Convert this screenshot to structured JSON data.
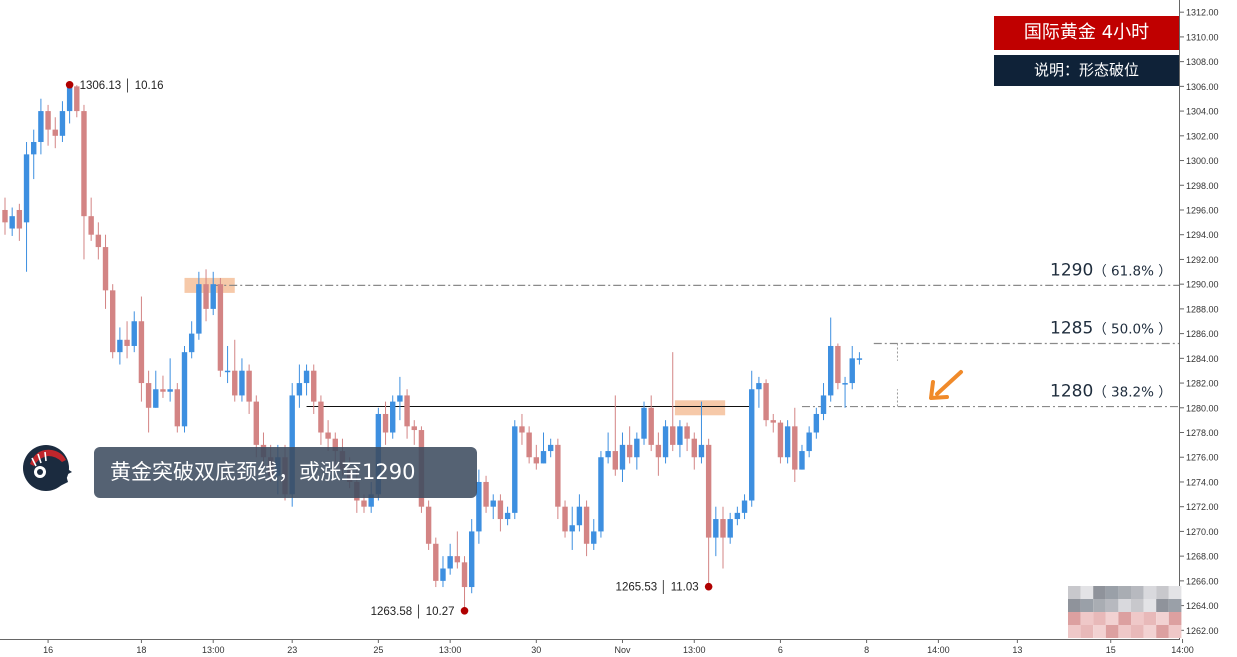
{
  "legend": {
    "title": "国际黄金  4小时",
    "note": "说明：形态破位"
  },
  "headline": "黄金突破双底颈线，或涨至1290",
  "colors": {
    "up": "#3d8fe0",
    "down": "#d38484",
    "marker": "#b00000",
    "highlight": "#f5c09a",
    "arrow": "#f08a2a",
    "title_bg": "#c00000",
    "note_bg": "#0f2238"
  },
  "chart_data": {
    "type": "candlestick",
    "title": "",
    "xlabel": "",
    "ylabel": "",
    "ylim": [
      1261.5,
      1312.5
    ],
    "grid": false,
    "y_ticks": [
      1262,
      1264,
      1266,
      1268,
      1270,
      1272,
      1274,
      1276,
      1278,
      1280,
      1282,
      1284,
      1286,
      1288,
      1290,
      1292,
      1294,
      1296,
      1298,
      1300,
      1302,
      1304,
      1306,
      1308,
      1310,
      1312
    ],
    "x_labels": [
      {
        "label": "16",
        "bar": 6
      },
      {
        "label": "18",
        "bar": 19
      },
      {
        "label": "13:00",
        "bar": 29
      },
      {
        "label": "23",
        "bar": 40
      },
      {
        "label": "25",
        "bar": 52
      },
      {
        "label": "13:00",
        "bar": 62
      },
      {
        "label": "30",
        "bar": 74
      },
      {
        "label": "Nov",
        "bar": 86
      },
      {
        "label": "13:00",
        "bar": 96
      },
      {
        "label": "6",
        "bar": 108
      },
      {
        "label": "8",
        "bar": 120
      },
      {
        "label": "14:00",
        "bar": 130
      },
      {
        "label": "13",
        "bar": 141
      },
      {
        "label": "15",
        "bar": 154
      },
      {
        "label": "14:00",
        "bar": 164
      }
    ],
    "candles": [
      [
        1296.0,
        1295.0,
        1297.0,
        1294.0
      ],
      [
        1294.5,
        1295.5,
        1296.2,
        1293.9
      ],
      [
        1296.0,
        1294.5,
        1296.5,
        1293.5
      ],
      [
        1295.0,
        1300.5,
        1301.5,
        1291.0
      ],
      [
        1300.5,
        1301.5,
        1302.5,
        1298.5
      ],
      [
        1301.5,
        1304.0,
        1305.0,
        1300.5
      ],
      [
        1304.0,
        1302.5,
        1304.5,
        1301.2
      ],
      [
        1302.5,
        1302.0,
        1303.5,
        1301.0
      ],
      [
        1302.0,
        1304.0,
        1304.8,
        1301.5
      ],
      [
        1304.0,
        1306.0,
        1306.13,
        1303.0
      ],
      [
        1306.0,
        1304.0,
        1306.1,
        1303.5
      ],
      [
        1304.0,
        1295.5,
        1304.5,
        1292.0
      ],
      [
        1295.5,
        1294.0,
        1297.0,
        1293.5
      ],
      [
        1294.0,
        1293.0,
        1295.0,
        1292.0
      ],
      [
        1293.0,
        1289.5,
        1294.0,
        1288.0
      ],
      [
        1289.5,
        1284.5,
        1290.0,
        1284.0
      ],
      [
        1284.5,
        1285.5,
        1286.5,
        1283.5
      ],
      [
        1285.5,
        1285.0,
        1287.0,
        1284.0
      ],
      [
        1285.0,
        1287.0,
        1287.8,
        1284.5
      ],
      [
        1287.0,
        1282.0,
        1289.0,
        1280.5
      ],
      [
        1282.0,
        1280.0,
        1283.0,
        1278.0
      ],
      [
        1280.0,
        1281.5,
        1283.0,
        1280.0
      ],
      [
        1281.5,
        1281.3,
        1282.6,
        1280.8
      ],
      [
        1281.3,
        1281.5,
        1284.0,
        1280.5
      ],
      [
        1281.5,
        1278.5,
        1282.0,
        1278.0
      ],
      [
        1278.5,
        1284.5,
        1285.0,
        1278.0
      ],
      [
        1284.5,
        1286.0,
        1287.0,
        1284.0
      ],
      [
        1286.0,
        1290.0,
        1291.0,
        1285.5
      ],
      [
        1290.0,
        1288.0,
        1291.2,
        1287.0
      ],
      [
        1288.0,
        1290.0,
        1291.0,
        1287.5
      ],
      [
        1290.0,
        1283.0,
        1290.5,
        1282.5
      ],
      [
        1283.0,
        1283.0,
        1285.0,
        1282.0
      ],
      [
        1283.0,
        1281.0,
        1285.5,
        1280.5
      ],
      [
        1281.0,
        1283.0,
        1284.0,
        1280.5
      ],
      [
        1283.0,
        1280.5,
        1283.5,
        1279.5
      ],
      [
        1280.5,
        1277.0,
        1281.0,
        1276.0
      ],
      [
        1277.0,
        1276.0,
        1278.0,
        1275.0
      ],
      [
        1276.0,
        1274.5,
        1277.0,
        1274.0
      ],
      [
        1274.5,
        1276.0,
        1277.0,
        1273.0
      ],
      [
        1276.0,
        1273.0,
        1277.0,
        1272.5
      ],
      [
        1273.0,
        1281.0,
        1282.0,
        1272.0
      ],
      [
        1281.0,
        1282.0,
        1283.5,
        1280.0
      ],
      [
        1282.0,
        1283.0,
        1283.5,
        1281.0
      ],
      [
        1283.0,
        1280.5,
        1283.5,
        1279.5
      ],
      [
        1280.5,
        1278.0,
        1281.0,
        1277.0
      ],
      [
        1278.0,
        1277.5,
        1279.0,
        1276.5
      ],
      [
        1277.5,
        1276.5,
        1278.0,
        1275.0
      ],
      [
        1276.5,
        1275.0,
        1277.5,
        1274.5
      ],
      [
        1275.0,
        1274.0,
        1276.0,
        1273.5
      ],
      [
        1274.0,
        1272.5,
        1275.0,
        1271.5
      ],
      [
        1272.5,
        1272.0,
        1273.0,
        1271.5
      ],
      [
        1272.0,
        1273.0,
        1274.0,
        1271.5
      ],
      [
        1273.0,
        1279.5,
        1280.0,
        1272.5
      ],
      [
        1279.5,
        1278.0,
        1280.5,
        1277.0
      ],
      [
        1278.0,
        1280.5,
        1281.0,
        1277.5
      ],
      [
        1280.5,
        1281.0,
        1282.5,
        1279.0
      ],
      [
        1281.0,
        1278.5,
        1281.5,
        1277.5
      ],
      [
        1278.5,
        1278.2,
        1279.0,
        1277.0
      ],
      [
        1278.2,
        1272.0,
        1278.5,
        1271.5
      ],
      [
        1272.0,
        1269.0,
        1272.5,
        1268.5
      ],
      [
        1269.0,
        1266.0,
        1269.5,
        1265.5
      ],
      [
        1266.0,
        1267.0,
        1268.0,
        1265.5
      ],
      [
        1267.0,
        1268.0,
        1269.0,
        1266.5
      ],
      [
        1268.0,
        1267.5,
        1270.0,
        1267.0
      ],
      [
        1267.5,
        1265.5,
        1268.0,
        1263.58
      ],
      [
        1265.5,
        1270.0,
        1271.0,
        1265.0
      ],
      [
        1270.0,
        1274.0,
        1275.0,
        1269.0
      ],
      [
        1274.0,
        1272.0,
        1274.5,
        1271.5
      ],
      [
        1272.0,
        1272.5,
        1273.0,
        1271.0
      ],
      [
        1272.5,
        1271.0,
        1273.0,
        1270.0
      ],
      [
        1271.0,
        1271.5,
        1272.0,
        1270.5
      ],
      [
        1271.5,
        1278.5,
        1279.0,
        1271.0
      ],
      [
        1278.5,
        1278.0,
        1279.5,
        1277.0
      ],
      [
        1278.0,
        1276.0,
        1278.5,
        1275.5
      ],
      [
        1276.0,
        1275.5,
        1277.0,
        1275.0
      ],
      [
        1275.5,
        1276.5,
        1278.0,
        1275.5
      ],
      [
        1276.5,
        1277.0,
        1277.5,
        1276.0
      ],
      [
        1277.0,
        1272.0,
        1277.5,
        1271.0
      ],
      [
        1272.0,
        1270.0,
        1272.5,
        1269.5
      ],
      [
        1270.0,
        1270.5,
        1272.0,
        1268.5
      ],
      [
        1270.5,
        1272.0,
        1273.0,
        1270.0
      ],
      [
        1272.0,
        1269.0,
        1272.5,
        1268.0
      ],
      [
        1269.0,
        1270.0,
        1271.0,
        1268.5
      ],
      [
        1270.0,
        1276.0,
        1276.5,
        1269.5
      ],
      [
        1276.0,
        1276.5,
        1278.0,
        1275.5
      ],
      [
        1276.5,
        1275.0,
        1281.0,
        1274.5
      ],
      [
        1275.0,
        1277.0,
        1278.0,
        1274.0
      ],
      [
        1277.0,
        1276.0,
        1278.5,
        1275.5
      ],
      [
        1276.0,
        1277.5,
        1278.0,
        1275.0
      ],
      [
        1277.5,
        1280.0,
        1280.5,
        1277.0
      ],
      [
        1280.0,
        1277.0,
        1281.0,
        1276.5
      ],
      [
        1277.0,
        1276.0,
        1278.0,
        1274.5
      ],
      [
        1276.0,
        1278.5,
        1279.0,
        1275.5
      ],
      [
        1278.5,
        1277.0,
        1284.5,
        1276.5
      ],
      [
        1277.0,
        1278.5,
        1279.0,
        1276.0
      ],
      [
        1278.5,
        1277.5,
        1278.8,
        1276.5
      ],
      [
        1277.5,
        1276.0,
        1278.0,
        1275.0
      ],
      [
        1276.0,
        1277.0,
        1280.5,
        1275.5
      ],
      [
        1277.0,
        1269.5,
        1277.5,
        1265.53
      ],
      [
        1269.5,
        1271.0,
        1272.0,
        1268.0
      ],
      [
        1271.0,
        1269.5,
        1272.0,
        1267.0
      ],
      [
        1269.5,
        1271.0,
        1271.5,
        1269.0
      ],
      [
        1271.0,
        1271.5,
        1272.0,
        1270.5
      ],
      [
        1271.5,
        1272.5,
        1273.0,
        1271.0
      ],
      [
        1272.5,
        1281.5,
        1283.0,
        1272.0
      ],
      [
        1281.5,
        1282.0,
        1282.5,
        1280.0
      ],
      [
        1282.0,
        1279.0,
        1282.3,
        1278.5
      ],
      [
        1279.0,
        1278.8,
        1279.5,
        1278.0
      ],
      [
        1278.8,
        1276.0,
        1279.0,
        1275.5
      ],
      [
        1276.0,
        1278.5,
        1279.0,
        1275.5
      ],
      [
        1278.5,
        1275.0,
        1280.0,
        1274.0
      ],
      [
        1275.0,
        1276.5,
        1277.0,
        1275.0
      ],
      [
        1276.5,
        1278.0,
        1278.5,
        1276.0
      ],
      [
        1278.0,
        1279.5,
        1280.0,
        1277.5
      ],
      [
        1279.5,
        1281.0,
        1282.0,
        1279.0
      ],
      [
        1281.0,
        1285.0,
        1287.3,
        1280.5
      ],
      [
        1285.0,
        1282.0,
        1285.2,
        1281.5
      ],
      [
        1282.0,
        1282.0,
        1282.5,
        1280.0
      ],
      [
        1282.0,
        1284.0,
        1285.0,
        1281.5
      ],
      [
        1284.0,
        1284.0,
        1284.5,
        1283.5
      ]
    ],
    "levels": [
      {
        "label": "1290",
        "pct": "（ 61.8% ）",
        "value": 1289.9,
        "start_bar": 29
      },
      {
        "label": "1285",
        "pct": "（ 50.0% ）",
        "value": 1285.2,
        "start_bar": 121
      },
      {
        "label": "1280",
        "pct": "（ 38.2% ）",
        "value": 1280.1,
        "start_bar": 111
      }
    ],
    "neckline": {
      "value": 1280.1,
      "from_bar": 42,
      "to_bar": 104
    },
    "highlights": [
      {
        "center_bar": 28.5,
        "value": 1289.9,
        "width_bars": 7
      },
      {
        "center_bar": 96.8,
        "value": 1280.0,
        "width_bars": 7
      }
    ],
    "price_markers": [
      {
        "text": "1306.13 │ 10.16",
        "bar": 9,
        "value": 1306.13,
        "label_side": "right"
      },
      {
        "text": "1263.58 │ 10.27",
        "bar": 64,
        "value": 1263.58,
        "label_side": "left"
      },
      {
        "text": "1265.53 │ 11.03",
        "bar": 98,
        "value": 1265.53,
        "label_side": "left"
      }
    ]
  }
}
